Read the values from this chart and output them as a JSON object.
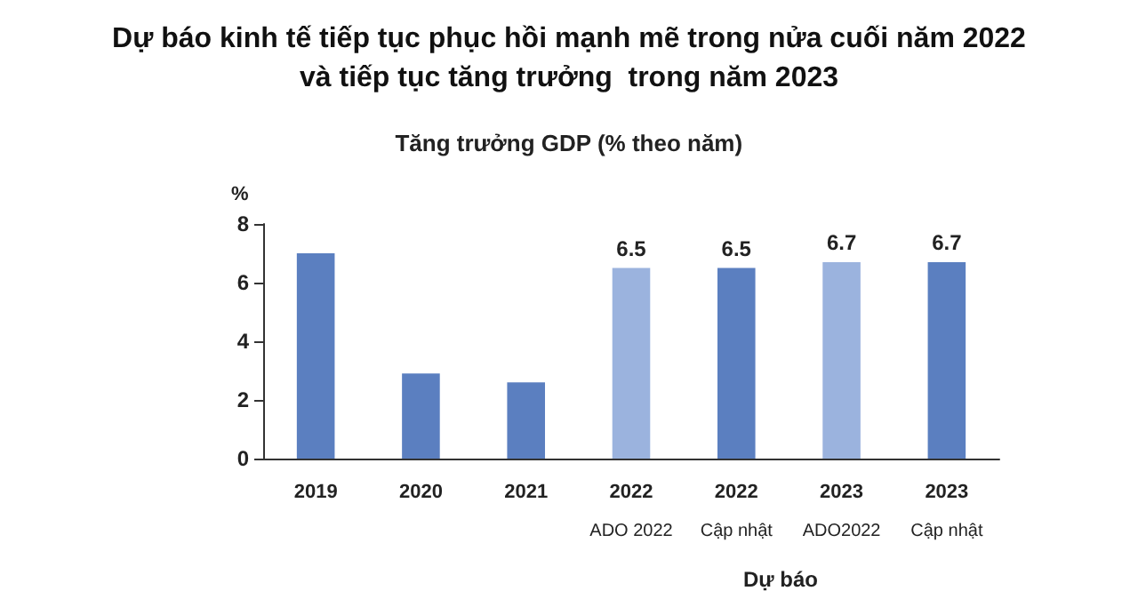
{
  "chart_data": {
    "type": "bar",
    "title": "Dự báo kinh tế tiếp tục phục hồi mạnh mẽ trong nửa cuối năm 2022\nvà tiếp tục tăng trưởng  trong năm 2023",
    "subtitle": "Tăng trưởng GDP (% theo năm)",
    "ylabel": "%",
    "categories": [
      "2019",
      "2020",
      "2021",
      "2022\nADO 2022",
      "2022\nCập nhật",
      "2023\nADO2022",
      "2023\nCập nhật"
    ],
    "values": [
      7.0,
      2.9,
      2.6,
      6.5,
      6.5,
      6.7,
      6.7
    ],
    "colors": [
      "#5b7fc0",
      "#5b7fc0",
      "#5b7fc0",
      "#9bb3de",
      "#5b7fc0",
      "#9bb3de",
      "#5b7fc0"
    ],
    "value_labels": [
      null,
      null,
      null,
      "6.5",
      "6.5",
      "6.7",
      "6.7"
    ],
    "ylim": [
      0,
      8
    ],
    "yticks": [
      0,
      2,
      4,
      6,
      8
    ],
    "grid": false,
    "annotations": [
      "Dự báo"
    ]
  }
}
